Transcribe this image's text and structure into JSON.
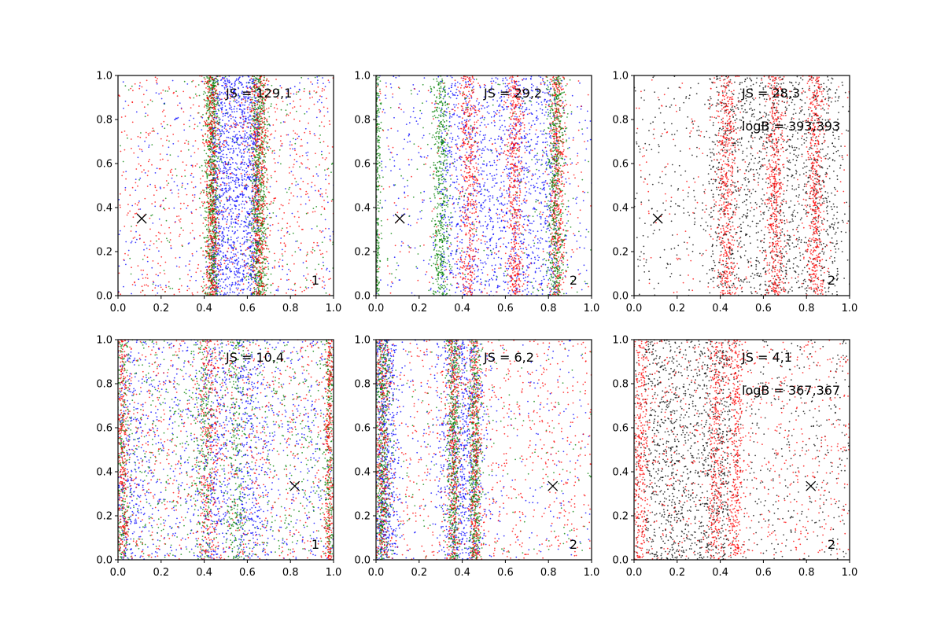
{
  "chart_data": [
    {
      "type": "scatter",
      "title": "",
      "xlabel": "",
      "ylabel": "",
      "xlim": [
        0,
        1
      ],
      "ylim": [
        0,
        1
      ],
      "xticks": [
        "0.0",
        "0.2",
        "0.4",
        "0.6",
        "0.8",
        "1.0"
      ],
      "yticks": [
        "0.0",
        "0.2",
        "0.4",
        "0.6",
        "0.8",
        "1.0"
      ],
      "annotations": {
        "js": "JS = 129,1",
        "logb": "",
        "panel_label": "1"
      },
      "marker": {
        "x": 0.11,
        "y": 0.35
      },
      "series": [
        {
          "color": "#0000ff",
          "distribution": "band",
          "centers": [
            0.435,
            0.655
          ],
          "width": 0.23,
          "band_fraction": 0.8
        },
        {
          "color": "#008000",
          "distribution": "bands",
          "centers": [
            0.435,
            0.655
          ],
          "widths": [
            0.035,
            0.04
          ],
          "band_fraction": 0.9
        },
        {
          "color": "#ff0000",
          "distribution": "bands",
          "centers": [
            0.435,
            0.655
          ],
          "widths": [
            0.035,
            0.04
          ],
          "band_fraction": 0.55
        }
      ]
    },
    {
      "type": "scatter",
      "title": "",
      "xlabel": "",
      "ylabel": "",
      "xlim": [
        0,
        1
      ],
      "ylim": [
        0,
        1
      ],
      "xticks": [
        "0.0",
        "0.2",
        "0.4",
        "0.6",
        "0.8",
        "1.0"
      ],
      "yticks": [
        "0.0",
        "0.2",
        "0.4",
        "0.6",
        "0.8",
        "1.0"
      ],
      "annotations": {
        "js": "JS = 29,2",
        "logb": "",
        "panel_label": "2"
      },
      "marker": {
        "x": 0.11,
        "y": 0.35
      },
      "series": [
        {
          "color": "#0000ff",
          "distribution": "band",
          "centers": [
            0.3,
            0.84
          ],
          "width": 0.55,
          "band_fraction": 0.75
        },
        {
          "color": "#ff0000",
          "distribution": "bands",
          "centers": [
            0.43,
            0.645,
            0.84
          ],
          "widths": [
            0.05,
            0.04,
            0.04
          ],
          "band_fraction": 0.85
        },
        {
          "color": "#008000",
          "distribution": "bands",
          "centers": [
            0.3,
            0.835,
            0.0
          ],
          "widths": [
            0.04,
            0.045,
            0.02
          ],
          "band_fraction": 0.9
        }
      ]
    },
    {
      "type": "scatter",
      "title": "",
      "xlabel": "",
      "ylabel": "",
      "xlim": [
        0,
        1
      ],
      "ylim": [
        0,
        1
      ],
      "xticks": [
        "0.0",
        "0.2",
        "0.4",
        "0.6",
        "0.8",
        "1.0"
      ],
      "yticks": [
        "0.0",
        "0.2",
        "0.4",
        "0.6",
        "0.8",
        "1.0"
      ],
      "annotations": {
        "js": "JS = 28,3",
        "logb": "logB = 393,393",
        "panel_label": "2"
      },
      "marker": {
        "x": 0.11,
        "y": 0.35
      },
      "series": [
        {
          "color": "#000000",
          "distribution": "band",
          "centers": [
            0.35,
            0.95
          ],
          "width": 0.6,
          "band_fraction": 0.7
        },
        {
          "color": "#ff0000",
          "distribution": "bands",
          "centers": [
            0.43,
            0.655,
            0.84
          ],
          "widths": [
            0.05,
            0.04,
            0.04
          ],
          "band_fraction": 0.85
        },
        {
          "color": "#008000",
          "distribution": "uniform",
          "centers": [],
          "widths": [],
          "band_fraction": 0.0
        }
      ]
    },
    {
      "type": "scatter",
      "title": "",
      "xlabel": "",
      "ylabel": "",
      "xlim": [
        0,
        1
      ],
      "ylim": [
        0,
        1
      ],
      "xticks": [
        "0.0",
        "0.2",
        "0.4",
        "0.6",
        "0.8",
        "1.0"
      ],
      "yticks": [
        "0.0",
        "0.2",
        "0.4",
        "0.6",
        "0.8",
        "1.0"
      ],
      "annotations": {
        "js": "JS = 10,4",
        "logb": "",
        "panel_label": "1"
      },
      "marker": {
        "x": 0.82,
        "y": 0.335
      },
      "series": [
        {
          "color": "#0000ff",
          "distribution": "bands",
          "centers": [
            0.05,
            0.45,
            0.6
          ],
          "widths": [
            0.1,
            0.08,
            0.08
          ],
          "band_fraction": 0.45
        },
        {
          "color": "#008000",
          "distribution": "bands",
          "centers": [
            0.02,
            0.4,
            0.55,
            0.98
          ],
          "widths": [
            0.03,
            0.05,
            0.05,
            0.02
          ],
          "band_fraction": 0.55
        },
        {
          "color": "#ff0000",
          "distribution": "bands",
          "centers": [
            0.02,
            0.42,
            0.98
          ],
          "widths": [
            0.03,
            0.05,
            0.02
          ],
          "band_fraction": 0.5
        }
      ]
    },
    {
      "type": "scatter",
      "title": "",
      "xlabel": "",
      "ylabel": "",
      "xlim": [
        0,
        1
      ],
      "ylim": [
        0,
        1
      ],
      "xticks": [
        "0.0",
        "0.2",
        "0.4",
        "0.6",
        "0.8",
        "1.0"
      ],
      "yticks": [
        "0.0",
        "0.2",
        "0.4",
        "0.6",
        "0.8",
        "1.0"
      ],
      "annotations": {
        "js": "JS = 6,2",
        "logb": "",
        "panel_label": "2"
      },
      "marker": {
        "x": 0.82,
        "y": 0.335
      },
      "series": [
        {
          "color": "#0000ff",
          "distribution": "bands",
          "centers": [
            0.04,
            0.4
          ],
          "widths": [
            0.07,
            0.12
          ],
          "band_fraction": 0.85
        },
        {
          "color": "#008000",
          "distribution": "bands",
          "centers": [
            0.03,
            0.36,
            0.46
          ],
          "widths": [
            0.04,
            0.03,
            0.03
          ],
          "band_fraction": 0.9
        },
        {
          "color": "#ff0000",
          "distribution": "bands",
          "centers": [
            0.03,
            0.36,
            0.46
          ],
          "widths": [
            0.04,
            0.03,
            0.03
          ],
          "band_fraction": 0.55
        }
      ]
    },
    {
      "type": "scatter",
      "title": "",
      "xlabel": "",
      "ylabel": "",
      "xlim": [
        0,
        1
      ],
      "ylim": [
        0,
        1
      ],
      "xticks": [
        "0.0",
        "0.2",
        "0.4",
        "0.6",
        "0.8",
        "1.0"
      ],
      "yticks": [
        "0.0",
        "0.2",
        "0.4",
        "0.6",
        "0.8",
        "1.0"
      ],
      "annotations": {
        "js": "JS = 4,1",
        "logb": "logB = 367,367",
        "panel_label": "2"
      },
      "marker": {
        "x": 0.82,
        "y": 0.335
      },
      "series": [
        {
          "color": "#000000",
          "distribution": "band",
          "centers": [
            0.05,
            0.45
          ],
          "width": 0.5,
          "band_fraction": 0.6
        },
        {
          "color": "#ff0000",
          "distribution": "bands",
          "centers": [
            0.03,
            0.38,
            0.47
          ],
          "widths": [
            0.04,
            0.04,
            0.04
          ],
          "band_fraction": 0.6
        },
        {
          "color": "#008000",
          "distribution": "uniform",
          "centers": [],
          "widths": [],
          "band_fraction": 0.0
        }
      ]
    }
  ]
}
